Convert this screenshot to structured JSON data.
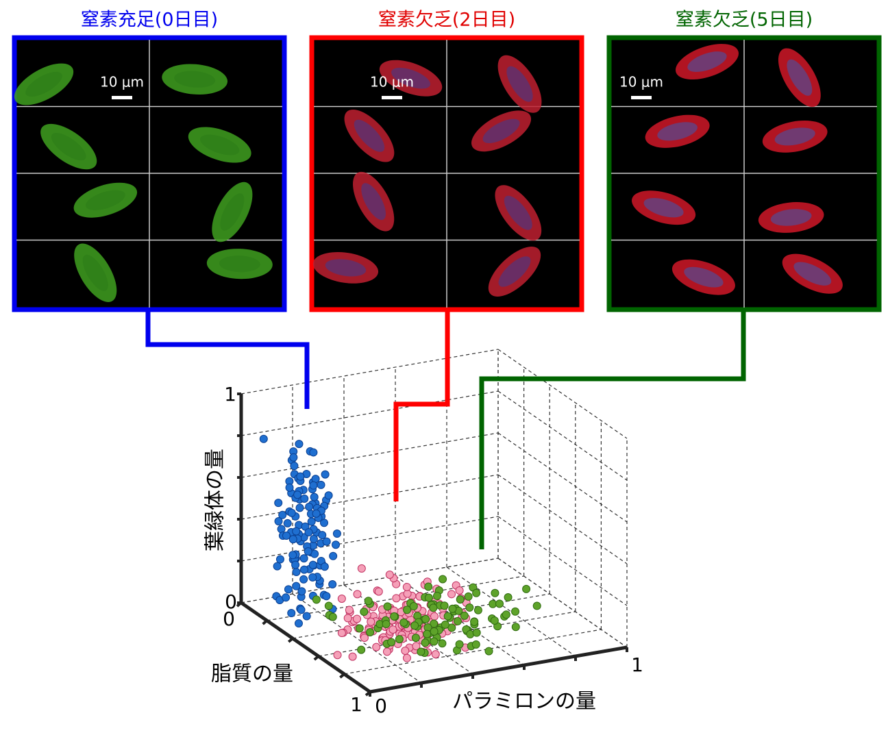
{
  "panels": [
    {
      "title": "窒素充足(0日目)",
      "scale": "10 μm"
    },
    {
      "title": "窒素欠乏(2日目)",
      "scale": "10 μm"
    },
    {
      "title": "窒素欠乏(5日目)",
      "scale": "10 μm"
    }
  ],
  "plot": {
    "z_label": "葉緑体の量",
    "y_label": "脂質の量",
    "x_label": "パラミロンの量",
    "z_ticks": [
      "0",
      "1"
    ],
    "y_ticks": [
      "0",
      "1"
    ],
    "x_ticks": [
      "0",
      "1"
    ]
  }
}
